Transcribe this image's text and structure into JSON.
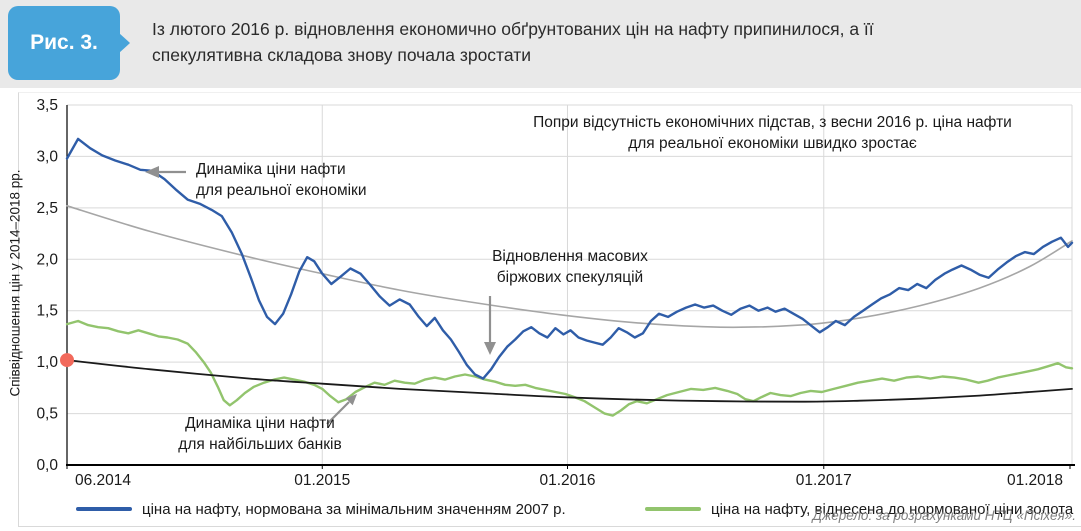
{
  "figure": {
    "badge": "Рис. 3.",
    "title": "Із лютого 2016 р. відновлення економично обґрунтованих цін на нафту припинилося,  а її\nспекулятивна складова знову почала зростати",
    "source": "Джерело: за розрахунками НТЦ «Псіхея»."
  },
  "colors": {
    "badge": "#47a4da",
    "header_bg": "#e9e9e9",
    "grid": "#d9d9d9",
    "axis": "#000000",
    "arrow": "#909090"
  },
  "chart_data": {
    "type": "line",
    "title": "",
    "xlabel": "",
    "ylabel": "Співвідношення цін у 2014–2018 рр.",
    "ylim": [
      0,
      3.5
    ],
    "grid": true,
    "legend_position": "bottom",
    "y_ticks": [
      {
        "v": 0.0,
        "label": "0,0"
      },
      {
        "v": 0.5,
        "label": "0,5"
      },
      {
        "v": 1.0,
        "label": "1,0"
      },
      {
        "v": 1.5,
        "label": "1,5"
      },
      {
        "v": 2.0,
        "label": "2,0"
      },
      {
        "v": 2.5,
        "label": "2,5"
      },
      {
        "v": 3.0,
        "label": "3,0"
      },
      {
        "v": 3.5,
        "label": "3,5"
      }
    ],
    "x_ticks": [
      {
        "pos": 0.0,
        "label": "06.2014"
      },
      {
        "pos": 0.254,
        "label": "01.2015"
      },
      {
        "pos": 0.498,
        "label": "01.2016"
      },
      {
        "pos": 0.753,
        "label": "01.2017"
      },
      {
        "pos": 0.998,
        "label": "01.2018"
      }
    ],
    "series": [
      {
        "name": "ціна на нафту, нормована за мінімальним значенням 2007 р.",
        "color": "#2f5da8",
        "style": "noisy",
        "width": 2.4,
        "points": [
          [
            0.0,
            2.98
          ],
          [
            0.011,
            3.17
          ],
          [
            0.023,
            3.08
          ],
          [
            0.035,
            3.01
          ],
          [
            0.048,
            2.96
          ],
          [
            0.061,
            2.92
          ],
          [
            0.073,
            2.87
          ],
          [
            0.085,
            2.86
          ],
          [
            0.097,
            2.78
          ],
          [
            0.108,
            2.68
          ],
          [
            0.12,
            2.58
          ],
          [
            0.132,
            2.54
          ],
          [
            0.144,
            2.48
          ],
          [
            0.154,
            2.42
          ],
          [
            0.164,
            2.26
          ],
          [
            0.174,
            2.05
          ],
          [
            0.183,
            1.82
          ],
          [
            0.191,
            1.6
          ],
          [
            0.199,
            1.44
          ],
          [
            0.207,
            1.37
          ],
          [
            0.215,
            1.47
          ],
          [
            0.223,
            1.66
          ],
          [
            0.231,
            1.88
          ],
          [
            0.239,
            2.02
          ],
          [
            0.246,
            1.98
          ],
          [
            0.254,
            1.86
          ],
          [
            0.263,
            1.76
          ],
          [
            0.272,
            1.83
          ],
          [
            0.282,
            1.91
          ],
          [
            0.292,
            1.86
          ],
          [
            0.301,
            1.76
          ],
          [
            0.311,
            1.64
          ],
          [
            0.321,
            1.55
          ],
          [
            0.331,
            1.61
          ],
          [
            0.341,
            1.56
          ],
          [
            0.35,
            1.44
          ],
          [
            0.358,
            1.35
          ],
          [
            0.366,
            1.43
          ],
          [
            0.374,
            1.31
          ],
          [
            0.382,
            1.22
          ],
          [
            0.39,
            1.1
          ],
          [
            0.398,
            0.97
          ],
          [
            0.406,
            0.88
          ],
          [
            0.414,
            0.84
          ],
          [
            0.422,
            0.93
          ],
          [
            0.43,
            1.05
          ],
          [
            0.438,
            1.15
          ],
          [
            0.446,
            1.22
          ],
          [
            0.454,
            1.3
          ],
          [
            0.462,
            1.34
          ],
          [
            0.47,
            1.28
          ],
          [
            0.478,
            1.24
          ],
          [
            0.486,
            1.33
          ],
          [
            0.494,
            1.27
          ],
          [
            0.501,
            1.31
          ],
          [
            0.509,
            1.24
          ],
          [
            0.517,
            1.21
          ],
          [
            0.525,
            1.19
          ],
          [
            0.533,
            1.17
          ],
          [
            0.541,
            1.24
          ],
          [
            0.549,
            1.33
          ],
          [
            0.557,
            1.29
          ],
          [
            0.565,
            1.24
          ],
          [
            0.573,
            1.28
          ],
          [
            0.581,
            1.4
          ],
          [
            0.589,
            1.47
          ],
          [
            0.598,
            1.44
          ],
          [
            0.607,
            1.49
          ],
          [
            0.616,
            1.53
          ],
          [
            0.625,
            1.56
          ],
          [
            0.634,
            1.53
          ],
          [
            0.643,
            1.55
          ],
          [
            0.652,
            1.5
          ],
          [
            0.661,
            1.46
          ],
          [
            0.67,
            1.52
          ],
          [
            0.679,
            1.55
          ],
          [
            0.688,
            1.5
          ],
          [
            0.697,
            1.53
          ],
          [
            0.705,
            1.49
          ],
          [
            0.714,
            1.52
          ],
          [
            0.723,
            1.47
          ],
          [
            0.732,
            1.42
          ],
          [
            0.741,
            1.35
          ],
          [
            0.749,
            1.29
          ],
          [
            0.757,
            1.34
          ],
          [
            0.765,
            1.4
          ],
          [
            0.774,
            1.36
          ],
          [
            0.783,
            1.44
          ],
          [
            0.792,
            1.5
          ],
          [
            0.801,
            1.56
          ],
          [
            0.81,
            1.62
          ],
          [
            0.819,
            1.66
          ],
          [
            0.828,
            1.72
          ],
          [
            0.837,
            1.7
          ],
          [
            0.846,
            1.76
          ],
          [
            0.855,
            1.72
          ],
          [
            0.864,
            1.8
          ],
          [
            0.873,
            1.86
          ],
          [
            0.881,
            1.9
          ],
          [
            0.89,
            1.94
          ],
          [
            0.899,
            1.9
          ],
          [
            0.908,
            1.85
          ],
          [
            0.917,
            1.82
          ],
          [
            0.926,
            1.9
          ],
          [
            0.935,
            1.97
          ],
          [
            0.944,
            2.03
          ],
          [
            0.953,
            2.07
          ],
          [
            0.962,
            2.05
          ],
          [
            0.971,
            2.12
          ],
          [
            0.98,
            2.17
          ],
          [
            0.989,
            2.21
          ],
          [
            0.996,
            2.12
          ],
          [
            1.0,
            2.16
          ]
        ]
      },
      {
        "name": "ціна на нафту, віднесена до нормованої ціни золота",
        "color": "#92c46d",
        "style": "noisy",
        "width": 2.4,
        "points": [
          [
            0.0,
            1.37
          ],
          [
            0.011,
            1.4
          ],
          [
            0.021,
            1.36
          ],
          [
            0.031,
            1.34
          ],
          [
            0.041,
            1.33
          ],
          [
            0.051,
            1.3
          ],
          [
            0.061,
            1.28
          ],
          [
            0.071,
            1.31
          ],
          [
            0.081,
            1.28
          ],
          [
            0.091,
            1.25
          ],
          [
            0.1,
            1.24
          ],
          [
            0.11,
            1.22
          ],
          [
            0.12,
            1.18
          ],
          [
            0.128,
            1.1
          ],
          [
            0.136,
            1.0
          ],
          [
            0.143,
            0.9
          ],
          [
            0.15,
            0.76
          ],
          [
            0.156,
            0.63
          ],
          [
            0.162,
            0.58
          ],
          [
            0.169,
            0.63
          ],
          [
            0.177,
            0.7
          ],
          [
            0.186,
            0.76
          ],
          [
            0.196,
            0.8
          ],
          [
            0.206,
            0.83
          ],
          [
            0.216,
            0.85
          ],
          [
            0.226,
            0.83
          ],
          [
            0.236,
            0.81
          ],
          [
            0.246,
            0.78
          ],
          [
            0.254,
            0.74
          ],
          [
            0.262,
            0.67
          ],
          [
            0.27,
            0.61
          ],
          [
            0.278,
            0.64
          ],
          [
            0.287,
            0.71
          ],
          [
            0.297,
            0.76
          ],
          [
            0.306,
            0.8
          ],
          [
            0.316,
            0.78
          ],
          [
            0.326,
            0.82
          ],
          [
            0.336,
            0.8
          ],
          [
            0.346,
            0.79
          ],
          [
            0.356,
            0.83
          ],
          [
            0.366,
            0.85
          ],
          [
            0.376,
            0.83
          ],
          [
            0.386,
            0.86
          ],
          [
            0.396,
            0.88
          ],
          [
            0.406,
            0.86
          ],
          [
            0.416,
            0.83
          ],
          [
            0.426,
            0.81
          ],
          [
            0.436,
            0.78
          ],
          [
            0.446,
            0.77
          ],
          [
            0.456,
            0.78
          ],
          [
            0.466,
            0.75
          ],
          [
            0.476,
            0.73
          ],
          [
            0.486,
            0.71
          ],
          [
            0.496,
            0.69
          ],
          [
            0.505,
            0.66
          ],
          [
            0.515,
            0.62
          ],
          [
            0.525,
            0.56
          ],
          [
            0.535,
            0.5
          ],
          [
            0.543,
            0.48
          ],
          [
            0.551,
            0.53
          ],
          [
            0.559,
            0.59
          ],
          [
            0.567,
            0.62
          ],
          [
            0.577,
            0.6
          ],
          [
            0.587,
            0.64
          ],
          [
            0.597,
            0.68
          ],
          [
            0.609,
            0.71
          ],
          [
            0.621,
            0.74
          ],
          [
            0.633,
            0.73
          ],
          [
            0.645,
            0.75
          ],
          [
            0.657,
            0.72
          ],
          [
            0.667,
            0.69
          ],
          [
            0.675,
            0.64
          ],
          [
            0.683,
            0.62
          ],
          [
            0.691,
            0.66
          ],
          [
            0.7,
            0.7
          ],
          [
            0.71,
            0.68
          ],
          [
            0.72,
            0.67
          ],
          [
            0.73,
            0.7
          ],
          [
            0.74,
            0.72
          ],
          [
            0.751,
            0.71
          ],
          [
            0.763,
            0.74
          ],
          [
            0.775,
            0.77
          ],
          [
            0.787,
            0.8
          ],
          [
            0.799,
            0.82
          ],
          [
            0.811,
            0.84
          ],
          [
            0.823,
            0.82
          ],
          [
            0.835,
            0.85
          ],
          [
            0.847,
            0.86
          ],
          [
            0.859,
            0.84
          ],
          [
            0.871,
            0.86
          ],
          [
            0.883,
            0.85
          ],
          [
            0.895,
            0.83
          ],
          [
            0.907,
            0.8
          ],
          [
            0.916,
            0.82
          ],
          [
            0.926,
            0.85
          ],
          [
            0.936,
            0.87
          ],
          [
            0.946,
            0.89
          ],
          [
            0.956,
            0.91
          ],
          [
            0.966,
            0.93
          ],
          [
            0.976,
            0.96
          ],
          [
            0.986,
            0.99
          ],
          [
            0.994,
            0.95
          ],
          [
            1.0,
            0.94
          ]
        ]
      },
      {
        "name": "тренд: динаміка ціни нафти для реальної економіки",
        "color": "#a6a6a6",
        "style": "trend",
        "width": 1.6,
        "points": [
          [
            0.0,
            2.52
          ],
          [
            0.083,
            2.27
          ],
          [
            0.182,
            2.02
          ],
          [
            0.254,
            1.86
          ],
          [
            0.331,
            1.7
          ],
          [
            0.411,
            1.57
          ],
          [
            0.491,
            1.46
          ],
          [
            0.57,
            1.38
          ],
          [
            0.65,
            1.34
          ],
          [
            0.729,
            1.36
          ],
          [
            0.789,
            1.43
          ],
          [
            0.849,
            1.55
          ],
          [
            0.908,
            1.72
          ],
          [
            0.958,
            1.93
          ],
          [
            1.0,
            2.18
          ]
        ]
      },
      {
        "name": "тренд: динаміка ціни нафти для найбільших банків",
        "color": "#1a1a1a",
        "style": "trend",
        "width": 1.8,
        "points": [
          [
            0.0,
            1.02
          ],
          [
            0.083,
            0.93
          ],
          [
            0.182,
            0.84
          ],
          [
            0.254,
            0.79
          ],
          [
            0.331,
            0.74
          ],
          [
            0.411,
            0.7
          ],
          [
            0.491,
            0.66
          ],
          [
            0.57,
            0.635
          ],
          [
            0.65,
            0.62
          ],
          [
            0.729,
            0.615
          ],
          [
            0.789,
            0.625
          ],
          [
            0.849,
            0.645
          ],
          [
            0.908,
            0.675
          ],
          [
            0.958,
            0.71
          ],
          [
            1.0,
            0.74
          ]
        ]
      }
    ],
    "marker": {
      "x": 0.0,
      "y": 1.02,
      "color": "#f2695b"
    },
    "annotations": [
      {
        "id": "no-grounds",
        "text": "Попри відсутність економічних підстав,  з весни 2016 р. ціна нафти\nдля реальної економіки швидко зростає"
      },
      {
        "id": "real-economy",
        "text": "Динаміка ціни нафти\nдля реальної економіки"
      },
      {
        "id": "speculation",
        "text": "Відновлення масових\nбіржових спекуляцій"
      },
      {
        "id": "banks",
        "text": "Динаміка ціни нафти\nдля найбільших банків"
      }
    ]
  }
}
